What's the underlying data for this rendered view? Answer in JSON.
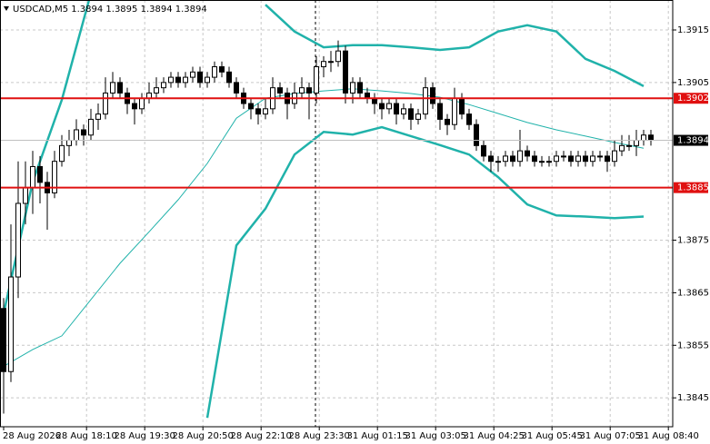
{
  "chart_data": {
    "type": "candlestick",
    "title": "USDCAD,M5  1.3894 1.3895 1.3894 1.3894",
    "ohlc": [
      [
        1.3862,
        1.3864,
        1.3842,
        1.385
      ],
      [
        1.385,
        1.3878,
        1.3848,
        1.3868
      ],
      [
        1.3868,
        1.389,
        1.3864,
        1.3882
      ],
      [
        1.3882,
        1.389,
        1.3878,
        1.3885
      ],
      [
        1.3885,
        1.3892,
        1.388,
        1.3889
      ],
      [
        1.3889,
        1.3891,
        1.3882,
        1.3886
      ],
      [
        1.3886,
        1.3888,
        1.3877,
        1.3884
      ],
      [
        1.3884,
        1.3892,
        1.3883,
        1.389
      ],
      [
        1.389,
        1.3895,
        1.3889,
        1.3893
      ],
      [
        1.3893,
        1.3896,
        1.3891,
        1.3894
      ],
      [
        1.3894,
        1.3898,
        1.3893,
        1.3896
      ],
      [
        1.3896,
        1.3897,
        1.3893,
        1.3895
      ],
      [
        1.3895,
        1.39,
        1.3894,
        1.3898
      ],
      [
        1.3898,
        1.3901,
        1.3896,
        1.3899
      ],
      [
        1.3899,
        1.3906,
        1.3898,
        1.3903
      ],
      [
        1.3903,
        1.3907,
        1.3902,
        1.3905
      ],
      [
        1.3905,
        1.3906,
        1.3902,
        1.3903
      ],
      [
        1.3903,
        1.3904,
        1.3899,
        1.3901
      ],
      [
        1.3901,
        1.3902,
        1.3897,
        1.39
      ],
      [
        1.39,
        1.3903,
        1.3899,
        1.3902
      ],
      [
        1.3902,
        1.3905,
        1.3901,
        1.3903
      ],
      [
        1.3903,
        1.3906,
        1.3902,
        1.3904
      ],
      [
        1.3904,
        1.3906,
        1.3903,
        1.3905
      ],
      [
        1.3905,
        1.3907,
        1.3904,
        1.3906
      ],
      [
        1.3906,
        1.3907,
        1.3904,
        1.3905
      ],
      [
        1.3905,
        1.3907,
        1.3904,
        1.3906
      ],
      [
        1.3906,
        1.3908,
        1.3905,
        1.3907
      ],
      [
        1.3907,
        1.3908,
        1.3904,
        1.3905
      ],
      [
        1.3905,
        1.3907,
        1.3904,
        1.3906
      ],
      [
        1.3906,
        1.3909,
        1.3905,
        1.3908
      ],
      [
        1.3908,
        1.3909,
        1.3906,
        1.3907
      ],
      [
        1.3907,
        1.3908,
        1.3904,
        1.3905
      ],
      [
        1.3905,
        1.3906,
        1.3902,
        1.3903
      ],
      [
        1.3903,
        1.3904,
        1.39,
        1.3901
      ],
      [
        1.3901,
        1.3902,
        1.3898,
        1.39
      ],
      [
        1.39,
        1.3901,
        1.3897,
        1.3899
      ],
      [
        1.3899,
        1.3902,
        1.3898,
        1.39
      ],
      [
        1.39,
        1.3906,
        1.3899,
        1.3904
      ],
      [
        1.3904,
        1.3905,
        1.3902,
        1.3903
      ],
      [
        1.3903,
        1.3904,
        1.3898,
        1.3901
      ],
      [
        1.3901,
        1.3905,
        1.39,
        1.3903
      ],
      [
        1.3903,
        1.3906,
        1.3902,
        1.3904
      ],
      [
        1.3904,
        1.3905,
        1.3898,
        1.3903
      ],
      [
        1.3903,
        1.391,
        1.3901,
        1.3908
      ],
      [
        1.3908,
        1.391,
        1.3906,
        1.3909
      ],
      [
        1.3909,
        1.3911,
        1.3907,
        1.3909
      ],
      [
        1.3909,
        1.3913,
        1.3908,
        1.3911
      ],
      [
        1.3911,
        1.3912,
        1.3901,
        1.3903
      ],
      [
        1.3903,
        1.3906,
        1.3901,
        1.3905
      ],
      [
        1.3905,
        1.3906,
        1.3902,
        1.3903
      ],
      [
        1.3903,
        1.3904,
        1.3901,
        1.3902
      ],
      [
        1.3902,
        1.3903,
        1.3899,
        1.3901
      ],
      [
        1.3901,
        1.3902,
        1.3898,
        1.39
      ],
      [
        1.39,
        1.3902,
        1.3899,
        1.3901
      ],
      [
        1.3901,
        1.3902,
        1.3897,
        1.3899
      ],
      [
        1.3899,
        1.3901,
        1.3898,
        1.39
      ],
      [
        1.39,
        1.3901,
        1.3896,
        1.3898
      ],
      [
        1.3898,
        1.39,
        1.3897,
        1.3899
      ],
      [
        1.3899,
        1.3906,
        1.3898,
        1.3904
      ],
      [
        1.3904,
        1.3905,
        1.39,
        1.3901
      ],
      [
        1.3901,
        1.3902,
        1.3896,
        1.3898
      ],
      [
        1.3898,
        1.3899,
        1.3895,
        1.3897
      ],
      [
        1.3897,
        1.3904,
        1.3896,
        1.3902
      ],
      [
        1.3902,
        1.3903,
        1.3898,
        1.3899
      ],
      [
        1.3899,
        1.39,
        1.3896,
        1.3897
      ],
      [
        1.3897,
        1.3898,
        1.3892,
        1.3893
      ],
      [
        1.3893,
        1.3894,
        1.389,
        1.3891
      ],
      [
        1.3891,
        1.3892,
        1.3888,
        1.389
      ],
      [
        1.389,
        1.3891,
        1.3888,
        1.389
      ],
      [
        1.389,
        1.3892,
        1.3889,
        1.3891
      ],
      [
        1.3891,
        1.3892,
        1.3889,
        1.389
      ],
      [
        1.389,
        1.3896,
        1.3889,
        1.3892
      ],
      [
        1.3892,
        1.3893,
        1.389,
        1.3891
      ],
      [
        1.3891,
        1.3892,
        1.3889,
        1.389
      ],
      [
        1.389,
        1.3891,
        1.3889,
        1.389
      ],
      [
        1.389,
        1.3891,
        1.3889,
        1.389
      ],
      [
        1.389,
        1.3892,
        1.3889,
        1.3891
      ],
      [
        1.3891,
        1.3892,
        1.389,
        1.3891
      ],
      [
        1.3891,
        1.3892,
        1.3889,
        1.389
      ],
      [
        1.389,
        1.3892,
        1.3889,
        1.3891
      ],
      [
        1.3891,
        1.3892,
        1.3889,
        1.389
      ],
      [
        1.389,
        1.3892,
        1.3889,
        1.3891
      ],
      [
        1.3891,
        1.3892,
        1.389,
        1.3891
      ],
      [
        1.3891,
        1.3892,
        1.3888,
        1.389
      ],
      [
        1.389,
        1.3894,
        1.3889,
        1.3892
      ],
      [
        1.3892,
        1.3895,
        1.3891,
        1.3893
      ],
      [
        1.3893,
        1.3895,
        1.3892,
        1.3893
      ],
      [
        1.3893,
        1.3896,
        1.3891,
        1.3894
      ],
      [
        1.3894,
        1.3896,
        1.3893,
        1.3895
      ],
      [
        1.3895,
        1.3896,
        1.3893,
        1.3894
      ]
    ],
    "xlim": [
      -0.5,
      92
    ],
    "xticks": [
      {
        "value": 0,
        "label": "28 Aug 2026"
      },
      {
        "value": 11.4,
        "label": "28 Aug 18:10"
      },
      {
        "value": 19.4,
        "label": "28 Aug 19:30"
      },
      {
        "value": 27.4,
        "label": "28 Aug 20:50"
      },
      {
        "value": 35.4,
        "label": "28 Aug 22:10"
      },
      {
        "value": 43.4,
        "label": "28 Aug 23:30"
      },
      {
        "value": 51.4,
        "label": "31 Aug 01:15"
      },
      {
        "value": 59.4,
        "label": "31 Aug 03:05"
      },
      {
        "value": 67.4,
        "label": "31 Aug 04:25"
      },
      {
        "value": 75.4,
        "label": "31 Aug 05:45"
      },
      {
        "value": 83.4,
        "label": "31 Aug 07:05"
      },
      {
        "value": 91.4,
        "label": "31 Aug 08:40"
      }
    ],
    "ylim": [
      1.38395,
      1.39207
    ],
    "yticks": [
      1.3845,
      1.3855,
      1.3865,
      1.3875,
      1.3905,
      1.3915
    ],
    "grid": true,
    "hlines": [
      {
        "value": 1.3902,
        "color": "#e01010"
      },
      {
        "value": 1.3885,
        "color": "#e01010"
      }
    ],
    "current_price": 1.3894,
    "bands": {
      "color": "#20b2aa",
      "x": [
        0,
        4,
        8,
        12,
        16,
        20,
        24,
        28,
        32,
        36,
        40,
        44,
        48,
        52,
        56,
        60,
        64,
        68,
        72,
        76,
        80,
        84,
        88
      ],
      "upper": [
        1.38611,
        1.38861,
        1.39017,
        1.3922,
        null,
        null,
        null,
        null,
        null,
        1.39198,
        1.39147,
        1.39117,
        1.39121,
        1.39121,
        1.39117,
        1.39112,
        1.39117,
        1.39147,
        1.39159,
        1.39147,
        1.39095,
        1.39072,
        1.39043
      ],
      "middle": [
        1.3851,
        1.38542,
        1.38568,
        1.38637,
        1.38706,
        1.38766,
        1.38827,
        1.38896,
        1.38982,
        1.3902,
        1.39029,
        1.39034,
        1.39038,
        1.39034,
        1.39029,
        1.39022,
        1.39008,
        1.38991,
        1.38974,
        1.3896,
        1.38948,
        1.38936,
        1.38925
      ],
      "lower": [
        null,
        null,
        null,
        null,
        null,
        null,
        null,
        1.38412,
        1.3874,
        1.3881,
        1.38913,
        1.38956,
        1.38951,
        1.38965,
        1.38948,
        1.38931,
        1.38913,
        1.3887,
        1.38818,
        1.38797,
        1.38795,
        1.38792,
        1.38795
      ]
    }
  }
}
